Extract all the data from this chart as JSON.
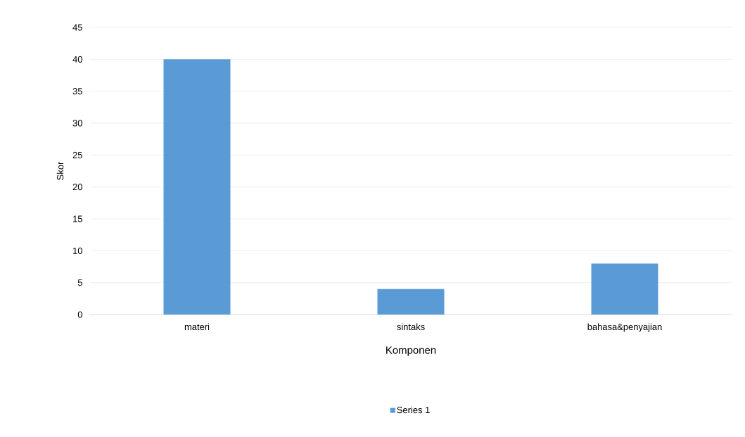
{
  "chart_data": {
    "type": "bar",
    "xlabel": "Komponen",
    "ylabel": "Skor",
    "categories": [
      "materi",
      "sintaks",
      "bahasa&penyajian"
    ],
    "series": [
      {
        "name": "Series 1",
        "color": "#5b9bd5",
        "values": [
          40,
          4,
          8
        ]
      }
    ],
    "ylim": [
      0,
      45
    ],
    "yticks": [
      0,
      5,
      10,
      15,
      20,
      25,
      30,
      35,
      40,
      45
    ],
    "grid": "y",
    "legend": "bottom"
  }
}
